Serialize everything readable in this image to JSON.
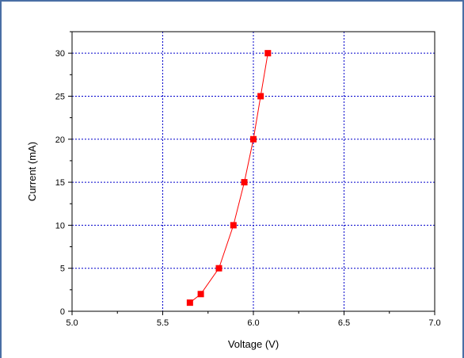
{
  "chart_data": {
    "type": "line",
    "xlabel": "Voltage (V)",
    "ylabel": "Current (mA)",
    "xlim": [
      5.0,
      7.0
    ],
    "ylim": [
      0,
      32.5
    ],
    "x_ticks": [
      5.0,
      5.5,
      6.0,
      6.5,
      7.0
    ],
    "x_tick_labels": [
      "5.0",
      "5.5",
      "6.0",
      "6.5",
      "7.0"
    ],
    "y_ticks": [
      0,
      5,
      10,
      15,
      20,
      25,
      30
    ],
    "y_tick_labels": [
      "0",
      "5",
      "10",
      "15",
      "20",
      "25",
      "30"
    ],
    "grid": true,
    "grid_color": "#0000cc",
    "series": [
      {
        "color": "#ff0000",
        "marker": "square",
        "points": [
          {
            "x": 5.65,
            "y": 1
          },
          {
            "x": 5.71,
            "y": 2
          },
          {
            "x": 5.81,
            "y": 5
          },
          {
            "x": 5.89,
            "y": 10
          },
          {
            "x": 5.95,
            "y": 15
          },
          {
            "x": 6.0,
            "y": 20
          },
          {
            "x": 6.04,
            "y": 25
          },
          {
            "x": 6.08,
            "y": 30
          }
        ]
      }
    ]
  }
}
